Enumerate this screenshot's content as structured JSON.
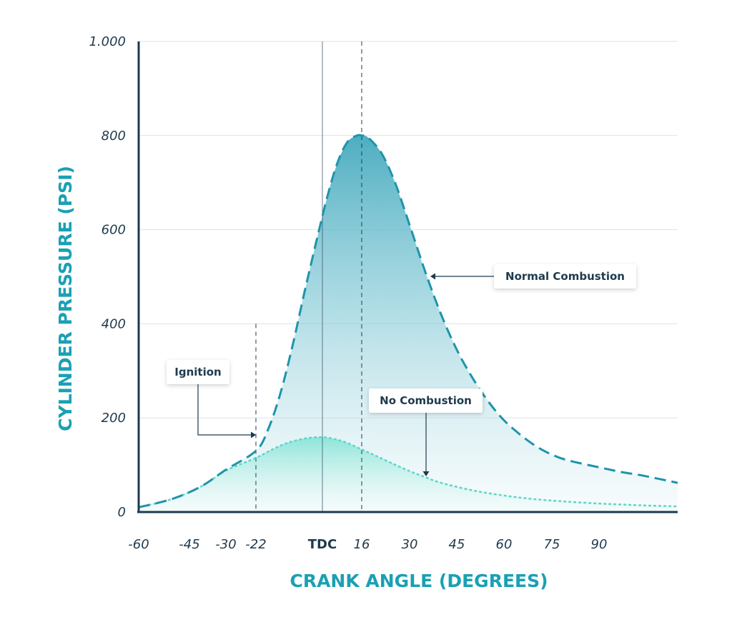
{
  "chart_data": {
    "type": "area",
    "xlabel": "CRANK ANGLE (DEGREES)",
    "ylabel": "CYLINDER PRESSURE (PSI)",
    "xlim": [
      -60,
      125
    ],
    "ylim": [
      0,
      1000
    ],
    "y_ticks": [
      {
        "value": 0,
        "label": "0"
      },
      {
        "value": 200,
        "label": "200"
      },
      {
        "value": 400,
        "label": "400"
      },
      {
        "value": 600,
        "label": "600"
      },
      {
        "value": 800,
        "label": "800"
      },
      {
        "value": 1000,
        "label": "1.000"
      }
    ],
    "x_ticks": [
      {
        "value": -60,
        "label": "-60"
      },
      {
        "value": -45,
        "label": "-45"
      },
      {
        "value": -30,
        "label": "-30"
      },
      {
        "value": -22,
        "label": "-22"
      },
      {
        "value": 0,
        "label": "TDC"
      },
      {
        "value": 16,
        "label": "16"
      },
      {
        "value": 30,
        "label": "30"
      },
      {
        "value": 45,
        "label": "45"
      },
      {
        "value": 60,
        "label": "60"
      },
      {
        "value": 75,
        "label": "75"
      },
      {
        "value": 90,
        "label": "90"
      }
    ],
    "grid": true,
    "series": [
      {
        "name": "Normal Combustion",
        "style": "dashed",
        "color": "#1e94aa",
        "x": [
          -60,
          -50,
          -40,
          -30,
          -22,
          -18,
          -14,
          -10,
          -6,
          -2,
          2,
          6,
          10,
          14,
          16,
          18,
          22,
          26,
          30,
          35,
          40,
          45,
          50,
          55,
          60,
          65,
          70,
          75,
          80,
          90,
          100,
          110,
          125
        ],
        "y": [
          10,
          28,
          55,
          90,
          130,
          175,
          250,
          350,
          465,
          575,
          670,
          740,
          785,
          800,
          800,
          795,
          760,
          695,
          610,
          510,
          420,
          345,
          285,
          235,
          195,
          165,
          140,
          122,
          110,
          95,
          85,
          77,
          62
        ]
      },
      {
        "name": "No Combustion",
        "style": "dotted",
        "color": "#5fd6c8",
        "x": [
          -60,
          -50,
          -40,
          -30,
          -22,
          -15,
          -10,
          -5,
          0,
          5,
          10,
          16,
          20,
          25,
          30,
          35,
          40,
          50,
          60,
          70,
          80,
          90,
          100,
          110,
          125
        ],
        "y": [
          10,
          28,
          55,
          88,
          115,
          138,
          150,
          157,
          159,
          155,
          147,
          133,
          120,
          103,
          87,
          74,
          62,
          46,
          35,
          27,
          22,
          18,
          16,
          14,
          12
        ]
      }
    ],
    "reference_lines": [
      {
        "x": -22,
        "style": "dashed",
        "to_y": 400
      },
      {
        "x": 0,
        "style": "solid",
        "to_y": 1000
      },
      {
        "x": 16,
        "style": "dashed",
        "to_y": 1000
      }
    ],
    "annotations": [
      {
        "text": "Ignition",
        "target_x": -22,
        "target_y": 165
      },
      {
        "text": "Normal Combustion",
        "target_x": 36,
        "target_y": 500
      },
      {
        "text": "No Combustion",
        "target_x": 36,
        "target_y": 80
      }
    ]
  },
  "colors": {
    "axis": "#1f3a4d",
    "grid": "#dde3e7",
    "accent": "#1aa0b4",
    "normal_fill_top": "#2e9fb6",
    "no_fill": "#6fe0cf",
    "text": "#1f3a4d"
  }
}
